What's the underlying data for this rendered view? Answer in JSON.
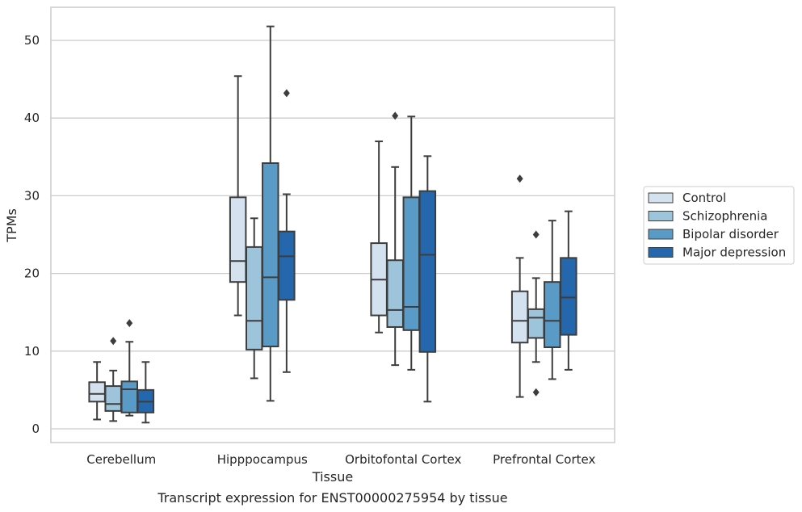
{
  "chart_data": {
    "type": "boxplot",
    "xlabel": "Tissue",
    "ylabel": "TPMs",
    "caption": "Transcript expression for ENST00000275954 by tissue",
    "ylim": [
      -1.5,
      54.2
    ],
    "yticks": [
      0,
      10,
      20,
      30,
      40,
      50
    ],
    "grid": "horizontal",
    "legend_placement": "right",
    "categories": [
      "Cerebellum",
      "Hipppocampus",
      "Orbitofontal Cortex",
      "Prefrontal Cortex"
    ],
    "series": [
      {
        "name": "Control",
        "color": "#d4e2f0",
        "boxes": [
          {
            "whislo": 1.2,
            "q1": 3.5,
            "med": 4.5,
            "q3": 6.0,
            "whishi": 8.6,
            "fliers": []
          },
          {
            "whislo": 14.6,
            "q1": 18.9,
            "med": 21.6,
            "q3": 29.8,
            "whishi": 45.4,
            "fliers": []
          },
          {
            "whislo": 12.4,
            "q1": 14.6,
            "med": 19.2,
            "q3": 23.9,
            "whishi": 37.0,
            "fliers": []
          },
          {
            "whislo": 4.1,
            "q1": 11.1,
            "med": 13.9,
            "q3": 17.7,
            "whishi": 22.0,
            "fliers": [
              32.2
            ]
          }
        ]
      },
      {
        "name": "Schizophrenia",
        "color": "#9dc4db",
        "boxes": [
          {
            "whislo": 1.0,
            "q1": 2.3,
            "med": 3.2,
            "q3": 5.5,
            "whishi": 7.5,
            "fliers": [
              11.3
            ]
          },
          {
            "whislo": 6.5,
            "q1": 10.2,
            "med": 13.9,
            "q3": 23.4,
            "whishi": 27.1,
            "fliers": []
          },
          {
            "whislo": 8.2,
            "q1": 13.1,
            "med": 15.3,
            "q3": 21.7,
            "whishi": 33.7,
            "fliers": [
              40.3
            ]
          },
          {
            "whislo": 8.6,
            "q1": 11.7,
            "med": 14.3,
            "q3": 15.4,
            "whishi": 19.4,
            "fliers": [
              4.7,
              25.0
            ]
          }
        ]
      },
      {
        "name": "Bipolar disorder",
        "color": "#5a9ac7",
        "boxes": [
          {
            "whislo": 1.7,
            "q1": 2.1,
            "med": 5.1,
            "q3": 6.1,
            "whishi": 11.2,
            "fliers": [
              13.6
            ]
          },
          {
            "whislo": 3.6,
            "q1": 10.6,
            "med": 19.5,
            "q3": 34.2,
            "whishi": 51.8,
            "fliers": []
          },
          {
            "whislo": 7.6,
            "q1": 12.7,
            "med": 15.7,
            "q3": 29.8,
            "whishi": 40.2,
            "fliers": []
          },
          {
            "whislo": 6.4,
            "q1": 10.5,
            "med": 13.9,
            "q3": 18.9,
            "whishi": 26.8,
            "fliers": []
          }
        ]
      },
      {
        "name": "Major depression",
        "color": "#2467ac",
        "boxes": [
          {
            "whislo": 0.8,
            "q1": 2.1,
            "med": 3.5,
            "q3": 5.0,
            "whishi": 8.6,
            "fliers": []
          },
          {
            "whislo": 7.3,
            "q1": 16.6,
            "med": 22.2,
            "q3": 25.4,
            "whishi": 30.2,
            "fliers": [
              43.2
            ]
          },
          {
            "whislo": 3.5,
            "q1": 9.9,
            "med": 22.4,
            "q3": 30.6,
            "whishi": 35.1,
            "fliers": []
          },
          {
            "whislo": 7.6,
            "q1": 12.1,
            "med": 16.9,
            "q3": 22.0,
            "whishi": 28.0,
            "fliers": []
          }
        ]
      }
    ]
  }
}
